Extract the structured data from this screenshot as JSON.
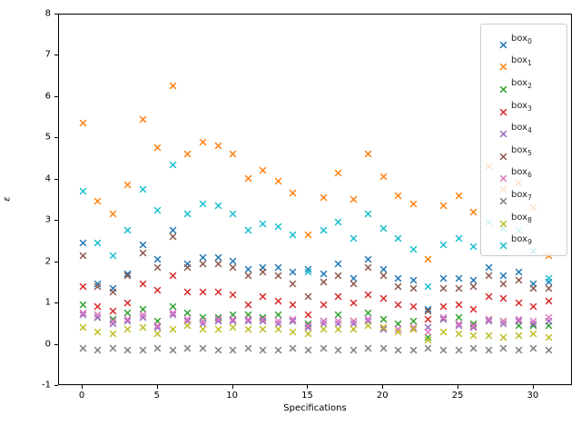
{
  "axes": {
    "xlabel": "Specifications",
    "ylabel": "ε",
    "x_ticks": [
      0,
      5,
      10,
      15,
      20,
      25,
      30
    ],
    "y_ticks": [
      -1,
      0,
      1,
      2,
      3,
      4,
      5,
      6,
      7,
      8
    ],
    "xlim": [
      -1.57,
      32.6
    ],
    "ylim": [
      -1,
      8
    ]
  },
  "legend": {
    "position": "upper right",
    "entries": [
      {
        "base": "box",
        "sub": "0",
        "color": "#1f77b4"
      },
      {
        "base": "box",
        "sub": "1",
        "color": "#ff7f0e"
      },
      {
        "base": "box",
        "sub": "2",
        "color": "#2ca02c"
      },
      {
        "base": "box",
        "sub": "3",
        "color": "#d62728"
      },
      {
        "base": "box",
        "sub": "4",
        "color": "#9467bd"
      },
      {
        "base": "box",
        "sub": "5",
        "color": "#8c564b"
      },
      {
        "base": "box",
        "sub": "6",
        "color": "#e377c2"
      },
      {
        "base": "box",
        "sub": "7",
        "color": "#7f7f7f"
      },
      {
        "base": "box",
        "sub": "8",
        "color": "#bcbd22"
      },
      {
        "base": "box",
        "sub": "9",
        "color": "#17becf"
      }
    ]
  },
  "chart_data": {
    "type": "scatter",
    "marker": "x",
    "title": "",
    "xlabel": "Specifications",
    "ylabel": "ε",
    "xlim": [
      -1.57,
      32.6
    ],
    "ylim": [
      -1,
      8
    ],
    "grid": false,
    "legend_position": "upper right",
    "x": [
      0,
      1,
      2,
      3,
      4,
      5,
      6,
      7,
      8,
      9,
      10,
      11,
      12,
      13,
      14,
      15,
      16,
      17,
      18,
      19,
      20,
      21,
      22,
      23,
      24,
      25,
      26,
      27,
      28,
      29,
      30,
      31
    ],
    "series": [
      {
        "name": "box_0",
        "color": "#1f77b4",
        "values": [
          2.6,
          1.6,
          1.5,
          1.85,
          2.55,
          2.2,
          2.9,
          2.1,
          2.25,
          2.25,
          2.15,
          1.95,
          2.0,
          2.0,
          1.9,
          1.95,
          1.85,
          2.1,
          1.75,
          2.2,
          1.95,
          1.75,
          1.7,
          1.0,
          1.75,
          1.75,
          1.7,
          2.0,
          1.8,
          1.9,
          1.6,
          1.65
        ]
      },
      {
        "name": "box_1",
        "color": "#ff7f0e",
        "values": [
          5.5,
          3.6,
          3.3,
          4.0,
          5.6,
          4.9,
          6.4,
          4.75,
          5.05,
          4.95,
          4.75,
          4.15,
          4.35,
          4.1,
          3.8,
          2.8,
          3.7,
          4.3,
          3.65,
          4.75,
          4.2,
          3.75,
          3.55,
          2.2,
          3.5,
          3.75,
          3.35,
          4.45,
          3.9,
          4.05,
          3.45,
          2.3
        ]
      },
      {
        "name": "box_2",
        "color": "#2ca02c",
        "values": [
          1.1,
          0.8,
          0.75,
          0.9,
          1.0,
          0.7,
          1.05,
          0.9,
          0.8,
          0.8,
          0.85,
          0.85,
          0.8,
          0.85,
          0.7,
          0.65,
          0.7,
          0.85,
          0.7,
          0.9,
          0.75,
          0.65,
          0.7,
          0.3,
          0.75,
          0.8,
          0.65,
          0.75,
          0.7,
          0.6,
          0.6,
          0.6
        ]
      },
      {
        "name": "box_3",
        "color": "#d62728",
        "values": [
          1.55,
          1.05,
          0.95,
          1.15,
          1.6,
          1.45,
          1.8,
          1.4,
          1.4,
          1.4,
          1.35,
          1.1,
          1.3,
          1.2,
          1.1,
          0.85,
          1.1,
          1.3,
          1.15,
          1.35,
          1.25,
          1.1,
          1.05,
          0.75,
          1.05,
          1.1,
          1.0,
          1.3,
          1.25,
          1.15,
          1.05,
          1.2
        ]
      },
      {
        "name": "box_4",
        "color": "#9467bd",
        "values": [
          0.85,
          0.8,
          0.65,
          0.7,
          0.8,
          0.55,
          0.85,
          0.7,
          0.65,
          0.7,
          0.7,
          0.7,
          0.7,
          0.65,
          0.7,
          0.55,
          0.65,
          0.65,
          0.65,
          0.7,
          0.5,
          0.5,
          0.5,
          0.55,
          0.75,
          0.6,
          0.55,
          0.7,
          0.65,
          0.7,
          0.65,
          0.7
        ]
      },
      {
        "name": "box_5",
        "color": "#8c564b",
        "values": [
          2.3,
          1.55,
          1.4,
          1.8,
          2.35,
          2.0,
          2.75,
          2.0,
          2.1,
          2.1,
          2.0,
          1.8,
          1.9,
          1.8,
          1.6,
          1.3,
          1.65,
          1.8,
          1.6,
          2.0,
          1.8,
          1.55,
          1.5,
          0.95,
          1.5,
          1.5,
          1.55,
          1.8,
          1.6,
          1.7,
          1.5,
          1.5
        ]
      },
      {
        "name": "box_6",
        "color": "#e377c2",
        "values": [
          0.9,
          0.85,
          0.7,
          0.75,
          0.85,
          0.6,
          0.9,
          0.75,
          0.7,
          0.75,
          0.75,
          0.75,
          0.75,
          0.7,
          0.75,
          0.6,
          0.7,
          0.7,
          0.7,
          0.75,
          0.55,
          0.5,
          0.55,
          0.45,
          0.8,
          0.65,
          0.6,
          0.75,
          0.7,
          0.75,
          0.7,
          0.8
        ]
      },
      {
        "name": "box_7",
        "color": "#7f7f7f",
        "values": [
          0.05,
          0.0,
          0.05,
          0.0,
          0.0,
          0.05,
          0.0,
          0.05,
          0.05,
          0.0,
          0.0,
          0.05,
          0.0,
          0.0,
          0.05,
          0.0,
          0.05,
          0.0,
          0.0,
          0.05,
          0.05,
          0.0,
          0.0,
          0.05,
          0.0,
          0.0,
          0.05,
          0.0,
          0.05,
          0.0,
          0.05,
          0.0
        ]
      },
      {
        "name": "box_8",
        "color": "#bcbd22",
        "values": [
          0.55,
          0.45,
          0.4,
          0.5,
          0.55,
          0.4,
          0.5,
          0.6,
          0.5,
          0.5,
          0.55,
          0.5,
          0.5,
          0.5,
          0.45,
          0.4,
          0.5,
          0.5,
          0.5,
          0.6,
          0.55,
          0.45,
          0.5,
          0.25,
          0.45,
          0.4,
          0.35,
          0.35,
          0.3,
          0.35,
          0.4,
          0.3
        ]
      },
      {
        "name": "box_9",
        "color": "#17becf",
        "values": [
          3.85,
          2.6,
          2.3,
          2.9,
          3.9,
          3.4,
          4.5,
          3.3,
          3.55,
          3.5,
          3.3,
          2.9,
          3.05,
          3.0,
          2.8,
          1.9,
          2.9,
          3.1,
          2.7,
          3.3,
          2.95,
          2.7,
          2.45,
          1.55,
          2.55,
          2.7,
          2.5,
          3.1,
          2.95,
          2.9,
          2.4,
          1.75
        ]
      }
    ]
  }
}
